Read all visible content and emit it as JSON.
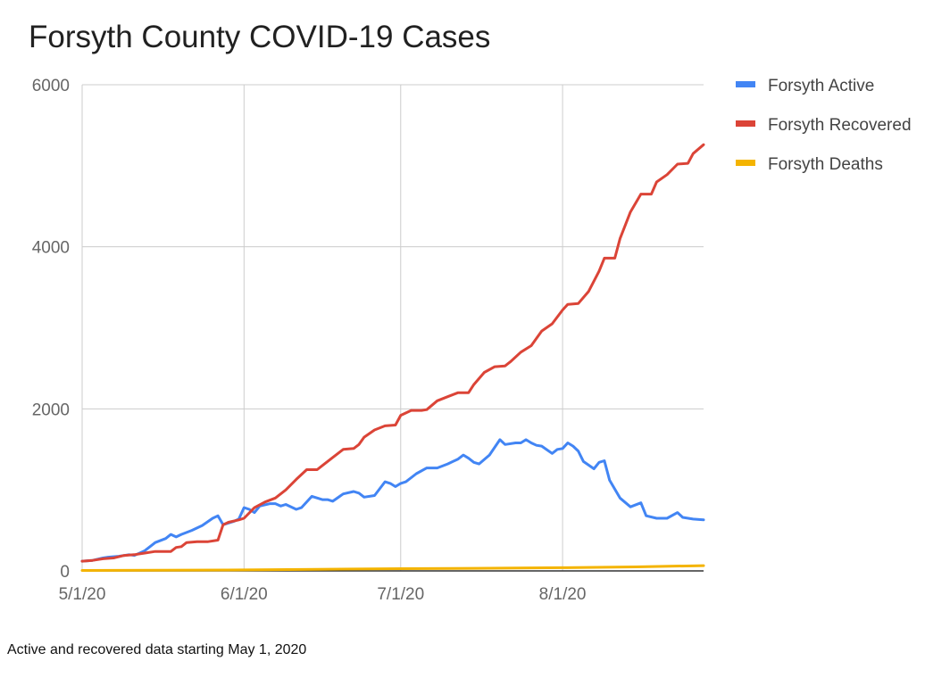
{
  "chart_data": {
    "type": "line",
    "title": "Forsyth County COVID-19 Cases",
    "xlabel": "",
    "ylabel": "",
    "x_ticks": [
      "5/1/20",
      "6/1/20",
      "7/1/20",
      "8/1/20"
    ],
    "y_ticks": [
      0,
      2000,
      4000,
      6000
    ],
    "ylim": [
      0,
      6000
    ],
    "xlim": [
      "2020-05-01",
      "2020-08-28"
    ],
    "grid": true,
    "legend": "right",
    "series": [
      {
        "name": "Forsyth Active",
        "color": "#4285f4",
        "points": [
          [
            "2020-05-01",
            120
          ],
          [
            "2020-05-03",
            130
          ],
          [
            "2020-05-05",
            160
          ],
          [
            "2020-05-06",
            170
          ],
          [
            "2020-05-08",
            180
          ],
          [
            "2020-05-10",
            200
          ],
          [
            "2020-05-11",
            190
          ],
          [
            "2020-05-13",
            250
          ],
          [
            "2020-05-15",
            350
          ],
          [
            "2020-05-17",
            400
          ],
          [
            "2020-05-18",
            450
          ],
          [
            "2020-05-19",
            420
          ],
          [
            "2020-05-20",
            450
          ],
          [
            "2020-05-22",
            500
          ],
          [
            "2020-05-24",
            560
          ],
          [
            "2020-05-26",
            650
          ],
          [
            "2020-05-27",
            680
          ],
          [
            "2020-05-28",
            570
          ],
          [
            "2020-05-30",
            610
          ],
          [
            "2020-05-31",
            640
          ],
          [
            "2020-06-01",
            780
          ],
          [
            "2020-06-02",
            760
          ],
          [
            "2020-06-03",
            720
          ],
          [
            "2020-06-04",
            800
          ],
          [
            "2020-06-06",
            830
          ],
          [
            "2020-06-07",
            830
          ],
          [
            "2020-06-08",
            800
          ],
          [
            "2020-06-09",
            820
          ],
          [
            "2020-06-11",
            760
          ],
          [
            "2020-06-12",
            780
          ],
          [
            "2020-06-14",
            920
          ],
          [
            "2020-06-16",
            880
          ],
          [
            "2020-06-17",
            880
          ],
          [
            "2020-06-18",
            860
          ],
          [
            "2020-06-20",
            950
          ],
          [
            "2020-06-22",
            980
          ],
          [
            "2020-06-23",
            960
          ],
          [
            "2020-06-24",
            910
          ],
          [
            "2020-06-26",
            930
          ],
          [
            "2020-06-28",
            1100
          ],
          [
            "2020-06-29",
            1080
          ],
          [
            "2020-06-30",
            1040
          ],
          [
            "2020-07-01",
            1080
          ],
          [
            "2020-07-02",
            1100
          ],
          [
            "2020-07-04",
            1200
          ],
          [
            "2020-07-06",
            1270
          ],
          [
            "2020-07-08",
            1270
          ],
          [
            "2020-07-10",
            1320
          ],
          [
            "2020-07-12",
            1380
          ],
          [
            "2020-07-13",
            1430
          ],
          [
            "2020-07-14",
            1390
          ],
          [
            "2020-07-15",
            1340
          ],
          [
            "2020-07-16",
            1320
          ],
          [
            "2020-07-18",
            1430
          ],
          [
            "2020-07-20",
            1620
          ],
          [
            "2020-07-21",
            1560
          ],
          [
            "2020-07-23",
            1580
          ],
          [
            "2020-07-24",
            1580
          ],
          [
            "2020-07-25",
            1620
          ],
          [
            "2020-07-26",
            1580
          ],
          [
            "2020-07-27",
            1550
          ],
          [
            "2020-07-28",
            1540
          ],
          [
            "2020-07-30",
            1450
          ],
          [
            "2020-07-31",
            1500
          ],
          [
            "2020-08-01",
            1510
          ],
          [
            "2020-08-02",
            1580
          ],
          [
            "2020-08-03",
            1540
          ],
          [
            "2020-08-04",
            1480
          ],
          [
            "2020-08-05",
            1350
          ],
          [
            "2020-08-07",
            1260
          ],
          [
            "2020-08-08",
            1340
          ],
          [
            "2020-08-09",
            1360
          ],
          [
            "2020-08-10",
            1120
          ],
          [
            "2020-08-12",
            900
          ],
          [
            "2020-08-14",
            790
          ],
          [
            "2020-08-16",
            840
          ],
          [
            "2020-08-17",
            680
          ],
          [
            "2020-08-19",
            650
          ],
          [
            "2020-08-21",
            650
          ],
          [
            "2020-08-23",
            720
          ],
          [
            "2020-08-24",
            660
          ],
          [
            "2020-08-26",
            640
          ],
          [
            "2020-08-28",
            630
          ]
        ]
      },
      {
        "name": "Forsyth Recovered",
        "color": "#db4437",
        "points": [
          [
            "2020-05-01",
            120
          ],
          [
            "2020-05-03",
            130
          ],
          [
            "2020-05-05",
            150
          ],
          [
            "2020-05-07",
            160
          ],
          [
            "2020-05-09",
            190
          ],
          [
            "2020-05-11",
            200
          ],
          [
            "2020-05-13",
            220
          ],
          [
            "2020-05-15",
            240
          ],
          [
            "2020-05-17",
            240
          ],
          [
            "2020-05-18",
            240
          ],
          [
            "2020-05-19",
            290
          ],
          [
            "2020-05-20",
            300
          ],
          [
            "2020-05-21",
            350
          ],
          [
            "2020-05-23",
            360
          ],
          [
            "2020-05-25",
            360
          ],
          [
            "2020-05-27",
            380
          ],
          [
            "2020-05-28",
            570
          ],
          [
            "2020-05-29",
            600
          ],
          [
            "2020-05-31",
            630
          ],
          [
            "2020-06-01",
            650
          ],
          [
            "2020-06-03",
            780
          ],
          [
            "2020-06-05",
            850
          ],
          [
            "2020-06-07",
            900
          ],
          [
            "2020-06-09",
            1000
          ],
          [
            "2020-06-11",
            1130
          ],
          [
            "2020-06-13",
            1250
          ],
          [
            "2020-06-15",
            1250
          ],
          [
            "2020-06-16",
            1300
          ],
          [
            "2020-06-18",
            1400
          ],
          [
            "2020-06-20",
            1500
          ],
          [
            "2020-06-22",
            1510
          ],
          [
            "2020-06-23",
            1560
          ],
          [
            "2020-06-24",
            1650
          ],
          [
            "2020-06-26",
            1740
          ],
          [
            "2020-06-28",
            1790
          ],
          [
            "2020-06-30",
            1800
          ],
          [
            "2020-07-01",
            1920
          ],
          [
            "2020-07-03",
            1980
          ],
          [
            "2020-07-05",
            1980
          ],
          [
            "2020-07-06",
            1990
          ],
          [
            "2020-07-08",
            2100
          ],
          [
            "2020-07-10",
            2150
          ],
          [
            "2020-07-12",
            2200
          ],
          [
            "2020-07-14",
            2200
          ],
          [
            "2020-07-15",
            2300
          ],
          [
            "2020-07-17",
            2450
          ],
          [
            "2020-07-19",
            2520
          ],
          [
            "2020-07-21",
            2530
          ],
          [
            "2020-07-22",
            2580
          ],
          [
            "2020-07-24",
            2700
          ],
          [
            "2020-07-26",
            2780
          ],
          [
            "2020-07-28",
            2960
          ],
          [
            "2020-07-30",
            3050
          ],
          [
            "2020-08-01",
            3220
          ],
          [
            "2020-08-02",
            3290
          ],
          [
            "2020-08-04",
            3300
          ],
          [
            "2020-08-06",
            3450
          ],
          [
            "2020-08-08",
            3700
          ],
          [
            "2020-08-09",
            3860
          ],
          [
            "2020-08-11",
            3860
          ],
          [
            "2020-08-12",
            4100
          ],
          [
            "2020-08-14",
            4430
          ],
          [
            "2020-08-16",
            4650
          ],
          [
            "2020-08-18",
            4650
          ],
          [
            "2020-08-19",
            4800
          ],
          [
            "2020-08-21",
            4890
          ],
          [
            "2020-08-23",
            5020
          ],
          [
            "2020-08-25",
            5030
          ],
          [
            "2020-08-26",
            5150
          ],
          [
            "2020-08-28",
            5260
          ]
        ]
      },
      {
        "name": "Forsyth Deaths",
        "color": "#f4b400",
        "points": [
          [
            "2020-05-01",
            5
          ],
          [
            "2020-05-15",
            8
          ],
          [
            "2020-06-01",
            12
          ],
          [
            "2020-06-15",
            20
          ],
          [
            "2020-07-01",
            28
          ],
          [
            "2020-07-15",
            32
          ],
          [
            "2020-08-01",
            40
          ],
          [
            "2020-08-15",
            50
          ],
          [
            "2020-08-28",
            65
          ]
        ]
      }
    ]
  },
  "caption": "Active and recovered data starting May 1, 2020"
}
